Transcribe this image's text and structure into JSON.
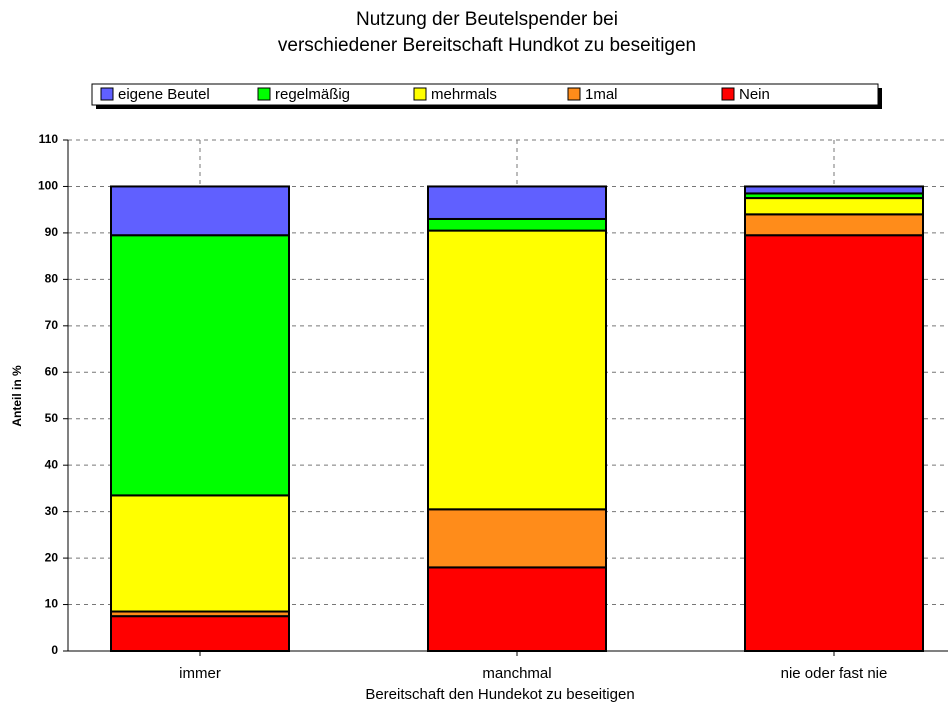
{
  "chart_data": {
    "type": "stacked_bar",
    "title": [
      "Nutzung der Beutelspender bei",
      "verschiedener Bereitschaft Hundkot zu beseitigen"
    ],
    "x_label": "Bereitschaft den Hundekot zu beseitigen",
    "y_label": "Anteil in %",
    "categories": [
      "immer",
      "manchmal",
      "nie oder fast nie"
    ],
    "series": [
      {
        "name": "eigene Beutel",
        "color": "#6060ff",
        "values": [
          10.5,
          7,
          1.5
        ]
      },
      {
        "name": "regelmäßig",
        "color": "#00ff00",
        "values": [
          56,
          2.5,
          1
        ]
      },
      {
        "name": "mehrmals",
        "color": "#ffff00",
        "values": [
          25,
          60,
          3.5
        ]
      },
      {
        "name": "1mal",
        "color": "#ff8c1a",
        "values": [
          1,
          12.5,
          4.5
        ]
      },
      {
        "name": "Nein",
        "color": "#ff0000",
        "values": [
          7.5,
          18,
          89.5
        ]
      }
    ],
    "ylim": [
      0,
      110
    ],
    "yticks": [
      0,
      10,
      20,
      30,
      40,
      50,
      60,
      70,
      80,
      90,
      100,
      110
    ],
    "grid": true
  }
}
